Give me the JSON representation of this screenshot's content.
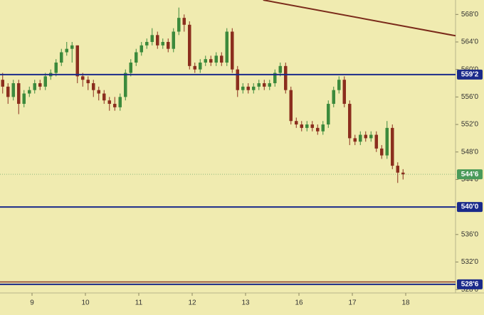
{
  "chart_data": {
    "type": "candlestick",
    "colors": {
      "up": "#3c8a3c",
      "down": "#8b2e1e",
      "background": "#f0ebb0"
    },
    "xlim": [
      0,
      85.33
    ],
    "xticks": [
      {
        "value": 6,
        "label": "9"
      },
      {
        "value": 16,
        "label": "10"
      },
      {
        "value": 26,
        "label": "11"
      },
      {
        "value": 36,
        "label": "12"
      },
      {
        "value": 46,
        "label": "13"
      },
      {
        "value": 56,
        "label": "16"
      },
      {
        "value": 66,
        "label": "17"
      },
      {
        "value": 76,
        "label": "18"
      }
    ],
    "ylim": [
      527.5,
      570.1
    ],
    "yticks": [
      {
        "value": 568,
        "label": "568'0"
      },
      {
        "value": 564,
        "label": "564'0"
      },
      {
        "value": 560,
        "label": "560'0"
      },
      {
        "value": 556,
        "label": "556'0"
      },
      {
        "value": 552,
        "label": "552'0"
      },
      {
        "value": 548,
        "label": "548'0"
      },
      {
        "value": 544,
        "label": "544'0"
      },
      {
        "value": 540,
        "label": "540'0"
      },
      {
        "value": 536,
        "label": "536'0"
      },
      {
        "value": 532,
        "label": "532'0"
      },
      {
        "value": 528,
        "label": "528'0"
      }
    ],
    "open": [
      558.5,
      557.5,
      556,
      558,
      555,
      556.5,
      557,
      558,
      557.5,
      559,
      559.5,
      561,
      562.5,
      563,
      563.5,
      559,
      558.5,
      558,
      557,
      556.5,
      555.5,
      555,
      554.5,
      556,
      559.5,
      561,
      562.5,
      563.5,
      564,
      565,
      563.5,
      564,
      563,
      565.5,
      567.5,
      566.5,
      560.5,
      560,
      561,
      561.5,
      561,
      562,
      561,
      565.5,
      560,
      557,
      557.5,
      557,
      557.5,
      558,
      557.5,
      558,
      559.5,
      560.5,
      557,
      552.5,
      552,
      551.5,
      552,
      551.5,
      551,
      552,
      555,
      557,
      558.5,
      555,
      550,
      549.5,
      550.5,
      550,
      550.5,
      548.5,
      547.5,
      551.5,
      546,
      545
    ],
    "high": [
      559.5,
      558,
      558.5,
      558.5,
      557,
      557.5,
      558.5,
      558.5,
      559.5,
      560,
      561.5,
      563,
      564,
      564,
      563.5,
      559.5,
      559,
      558.5,
      557.5,
      557,
      556,
      556,
      556.5,
      560,
      561.5,
      563,
      564,
      564.5,
      566,
      565.5,
      564.5,
      564.5,
      566,
      569,
      568,
      567,
      561,
      561.5,
      562,
      562,
      562.5,
      562.5,
      566,
      566,
      560.5,
      558,
      558,
      558,
      558.5,
      558.5,
      558.5,
      560,
      561,
      561,
      557.5,
      553,
      552.5,
      552.5,
      552.5,
      552,
      552.5,
      555.5,
      557.5,
      559,
      559,
      555.5,
      550.5,
      551,
      551,
      551,
      551,
      549,
      552.5,
      552,
      546.5,
      545.5
    ],
    "low": [
      556.5,
      555,
      555.5,
      553.5,
      554.5,
      556,
      556.5,
      557,
      557,
      558.5,
      559,
      560.5,
      562,
      561,
      558,
      557.5,
      557,
      556,
      555.5,
      555,
      554,
      554,
      554,
      555.5,
      559,
      560.5,
      562,
      563,
      563.5,
      563,
      563,
      562.5,
      562.5,
      565,
      565.5,
      560,
      559.5,
      559.5,
      560.5,
      560.5,
      560.5,
      560.5,
      560.5,
      559.5,
      556,
      556.5,
      556.5,
      556.5,
      557,
      557,
      557,
      557.5,
      559,
      556.5,
      552,
      551.5,
      551,
      551,
      551,
      550.5,
      550.5,
      551.5,
      554.5,
      556.5,
      554.5,
      549,
      549,
      549,
      549.5,
      549.5,
      548,
      547,
      547,
      545.5,
      543.5,
      544
    ],
    "close": [
      557.5,
      556,
      558,
      555,
      556.5,
      557,
      558,
      557.5,
      559,
      559.5,
      561,
      562.5,
      563,
      563.5,
      559,
      558.5,
      558,
      557,
      556.5,
      555.5,
      555,
      554.5,
      556,
      559.5,
      561,
      562.5,
      563.5,
      564,
      565,
      563.5,
      564,
      563,
      565.5,
      567.5,
      566.5,
      560.5,
      560,
      561,
      561.5,
      561,
      562,
      561,
      565.5,
      560,
      557,
      557.5,
      557,
      557.5,
      558,
      557.5,
      558,
      559.5,
      560.5,
      557,
      552.5,
      552,
      551.5,
      552,
      551.5,
      551,
      552,
      555,
      557,
      558.5,
      555,
      550,
      549.5,
      550.5,
      550,
      550.5,
      548.5,
      547.5,
      551.5,
      546,
      545,
      544.75
    ],
    "levels": [
      {
        "value": 559.25,
        "label": "559'2",
        "color": "#1a2a8a"
      },
      {
        "value": 540,
        "label": "540'0",
        "color": "#1a2a8a"
      },
      {
        "value": 528.75,
        "label": "528'6",
        "color": "#1a2a8a"
      }
    ],
    "extra_lines": [
      {
        "value": 529.1,
        "color": "#8b3a2a"
      }
    ],
    "last_price": {
      "value": 544.75,
      "label": "544'6",
      "color": "#4a9a5a"
    },
    "trendline": {
      "x": [
        49.3,
        85.33
      ],
      "y": [
        570.1,
        564.9
      ],
      "color": "#7a2a1a"
    }
  }
}
